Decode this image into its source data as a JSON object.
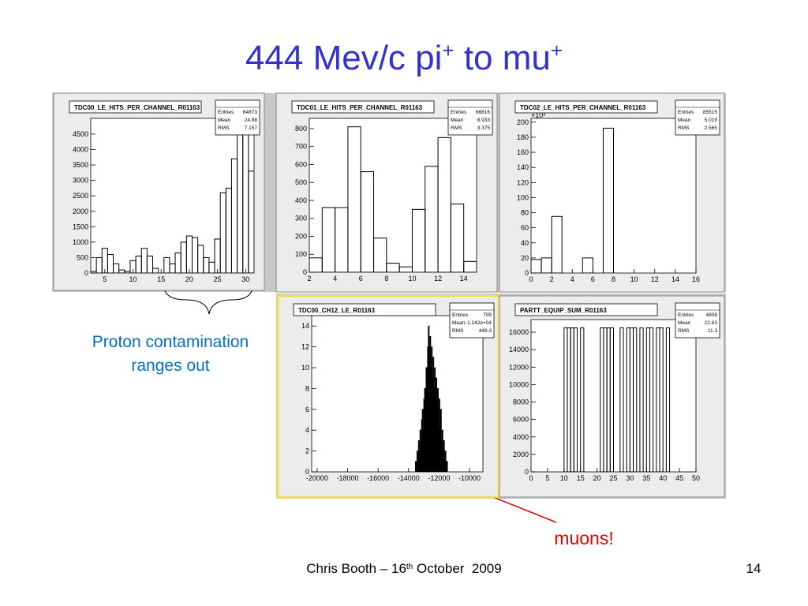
{
  "slide": {
    "title": [
      "444 Mev/c pi",
      "+",
      " to mu",
      "+"
    ],
    "annotation_left": [
      "Proton contamination",
      "ranges out"
    ],
    "annotation_right": "muons!",
    "footer": [
      "Chris Booth – 16",
      "th",
      " October  2009"
    ],
    "page_number": "14"
  },
  "chart_data": [
    {
      "type": "histogram",
      "title": "TDC00_LE_HITS_PER_CHANNEL_R01163",
      "stats": [
        {
          "label": "Entries",
          "value": "64873"
        },
        {
          "label": "Mean",
          "value": "24.88"
        },
        {
          "label": "RMS",
          "value": "7.157"
        }
      ],
      "bins": [
        2.5,
        3.5,
        4.5,
        5.5,
        6.5,
        7.5,
        8.5,
        9.5,
        10.5,
        11.5,
        12.5,
        13.5,
        14.5,
        15.5,
        16.5,
        17.5,
        18.5,
        19.5,
        20.5,
        21.5,
        22.5,
        23.5,
        24.5,
        25.5,
        26.5,
        27.5,
        28.5,
        29.5,
        30.5,
        31.5
      ],
      "counts": [
        50,
        500,
        800,
        600,
        300,
        100,
        50,
        400,
        550,
        800,
        550,
        150,
        0,
        500,
        300,
        650,
        1000,
        1200,
        1150,
        900,
        500,
        350,
        1100,
        2600,
        2750,
        3700,
        4500,
        4900,
        3300
      ],
      "xlim": [
        2.5,
        31.5
      ],
      "ylim": [
        0,
        5010
      ],
      "xticks": [
        5,
        10,
        15,
        20,
        25,
        30
      ],
      "yticks": [
        0,
        500,
        1000,
        1500,
        2000,
        2500,
        3000,
        3500,
        4000,
        4500
      ]
    },
    {
      "type": "histogram",
      "title": "TDC01_LE_HITS_PER_CHANNEL_R01163",
      "stats": [
        {
          "label": "Entries",
          "value": "66816"
        },
        {
          "label": "Mean",
          "value": "8.933"
        },
        {
          "label": "RMS",
          "value": "3.375"
        }
      ],
      "bins": [
        2,
        3,
        4,
        5,
        6,
        7,
        8,
        9,
        10,
        11,
        12,
        13,
        14,
        15
      ],
      "counts": [
        80,
        360,
        360,
        810,
        560,
        190,
        50,
        30,
        350,
        590,
        750,
        380,
        60
      ],
      "xlim": [
        2,
        15
      ],
      "ylim": [
        0,
        857
      ],
      "xticks": [
        2,
        4,
        6,
        8,
        10,
        12,
        14
      ],
      "yticks": [
        0,
        100,
        200,
        300,
        400,
        500,
        600,
        700,
        800
      ]
    },
    {
      "type": "histogram",
      "title": "TDC02_LE_HITS_PER_CHANNEL_R01163",
      "stats": [
        {
          "label": "Entries",
          "value": "85515"
        },
        {
          "label": "Mean",
          "value": "5.019"
        },
        {
          "label": "RMS",
          "value": "2.565"
        }
      ],
      "y_multiplier": "×10³",
      "bins": [
        0,
        1,
        2,
        3,
        4,
        5,
        6,
        7,
        8,
        9,
        10,
        11,
        12,
        13,
        14,
        15,
        16
      ],
      "counts": [
        18,
        20,
        75,
        0,
        0,
        20,
        0,
        192,
        0,
        0,
        0,
        0,
        0,
        0,
        0,
        0
      ],
      "xlim": [
        0,
        16
      ],
      "ylim": [
        0,
        205
      ],
      "xticks": [
        0,
        2,
        4,
        6,
        8,
        10,
        12,
        14,
        16
      ],
      "yticks": [
        0,
        20,
        40,
        60,
        80,
        100,
        120,
        140,
        160,
        180,
        200
      ]
    },
    {
      "type": "histogram",
      "title": "TDC00_CH12_LE_R01163",
      "stats": [
        {
          "label": "Entries",
          "value": "705"
        },
        {
          "label": "Mean",
          "value": "-1.242e+04"
        },
        {
          "label": "RMS",
          "value": "449.3"
        }
      ],
      "bins": [
        -13600,
        -13550,
        -13500,
        -13450,
        -13400,
        -13350,
        -13300,
        -13250,
        -13200,
        -13150,
        -13100,
        -13050,
        -13000,
        -12950,
        -12900,
        -12850,
        -12800,
        -12750,
        -12700,
        -12650,
        -12600,
        -12550,
        -12500,
        -12450,
        -12400,
        -12350,
        -12300,
        -12250,
        -12200,
        -12150,
        -12100,
        -12050,
        -12000,
        -11950,
        -11900,
        -11850,
        -11800,
        -11750,
        -11700,
        -11650,
        -11600,
        -11550,
        -11500,
        -11450,
        -11400
      ],
      "counts": [
        0,
        1,
        0,
        2,
        1,
        3,
        2,
        4,
        3,
        5,
        6,
        4,
        7,
        8,
        6,
        10,
        9,
        12,
        14,
        11,
        13,
        10,
        12,
        9,
        11,
        8,
        10,
        7,
        9,
        6,
        8,
        5,
        7,
        4,
        6,
        3,
        4,
        2,
        3,
        1,
        2,
        1,
        1,
        0
      ],
      "xlim": [
        -20360,
        -9120
      ],
      "ylim": [
        0,
        15
      ],
      "xticks": [
        -20000,
        -18000,
        -16000,
        -14000,
        -12000,
        -10000
      ],
      "yticks": [
        0,
        2,
        4,
        6,
        8,
        10,
        12,
        14
      ]
    },
    {
      "type": "histogram",
      "title": "PARTT_EQUIP_SUM_R01163",
      "stats": [
        {
          "label": "Entries",
          "value": "4908"
        },
        {
          "label": "Mean",
          "value": "22.63"
        },
        {
          "label": "RMS",
          "value": "11.3"
        }
      ],
      "bins": [
        0,
        1,
        2,
        3,
        4,
        5,
        6,
        7,
        8,
        9,
        10,
        11,
        12,
        13,
        14,
        15,
        16,
        17,
        18,
        19,
        20,
        21,
        22,
        23,
        24,
        25,
        26,
        27,
        28,
        29,
        30,
        31,
        32,
        33,
        34,
        35,
        36,
        37,
        38,
        39,
        40,
        41,
        42,
        43,
        44,
        45,
        46,
        47,
        48,
        49,
        50
      ],
      "counts": [
        0,
        0,
        0,
        0,
        0,
        0,
        0,
        0,
        0,
        0,
        16500,
        16500,
        16500,
        16500,
        0,
        16500,
        0,
        0,
        0,
        0,
        0,
        16500,
        16500,
        16500,
        16500,
        0,
        0,
        16500,
        0,
        16500,
        16500,
        16500,
        0,
        16500,
        0,
        16500,
        16500,
        0,
        16500,
        16500,
        0,
        16500,
        0,
        0,
        0,
        0,
        0,
        0,
        0,
        0
      ],
      "xlim": [
        0,
        50
      ],
      "ylim": [
        0,
        17450
      ],
      "xticks": [
        0,
        5,
        10,
        15,
        20,
        25,
        30,
        35,
        40,
        45,
        50
      ],
      "yticks": [
        0,
        2000,
        4000,
        6000,
        8000,
        10000,
        12000,
        14000,
        16000
      ]
    }
  ]
}
